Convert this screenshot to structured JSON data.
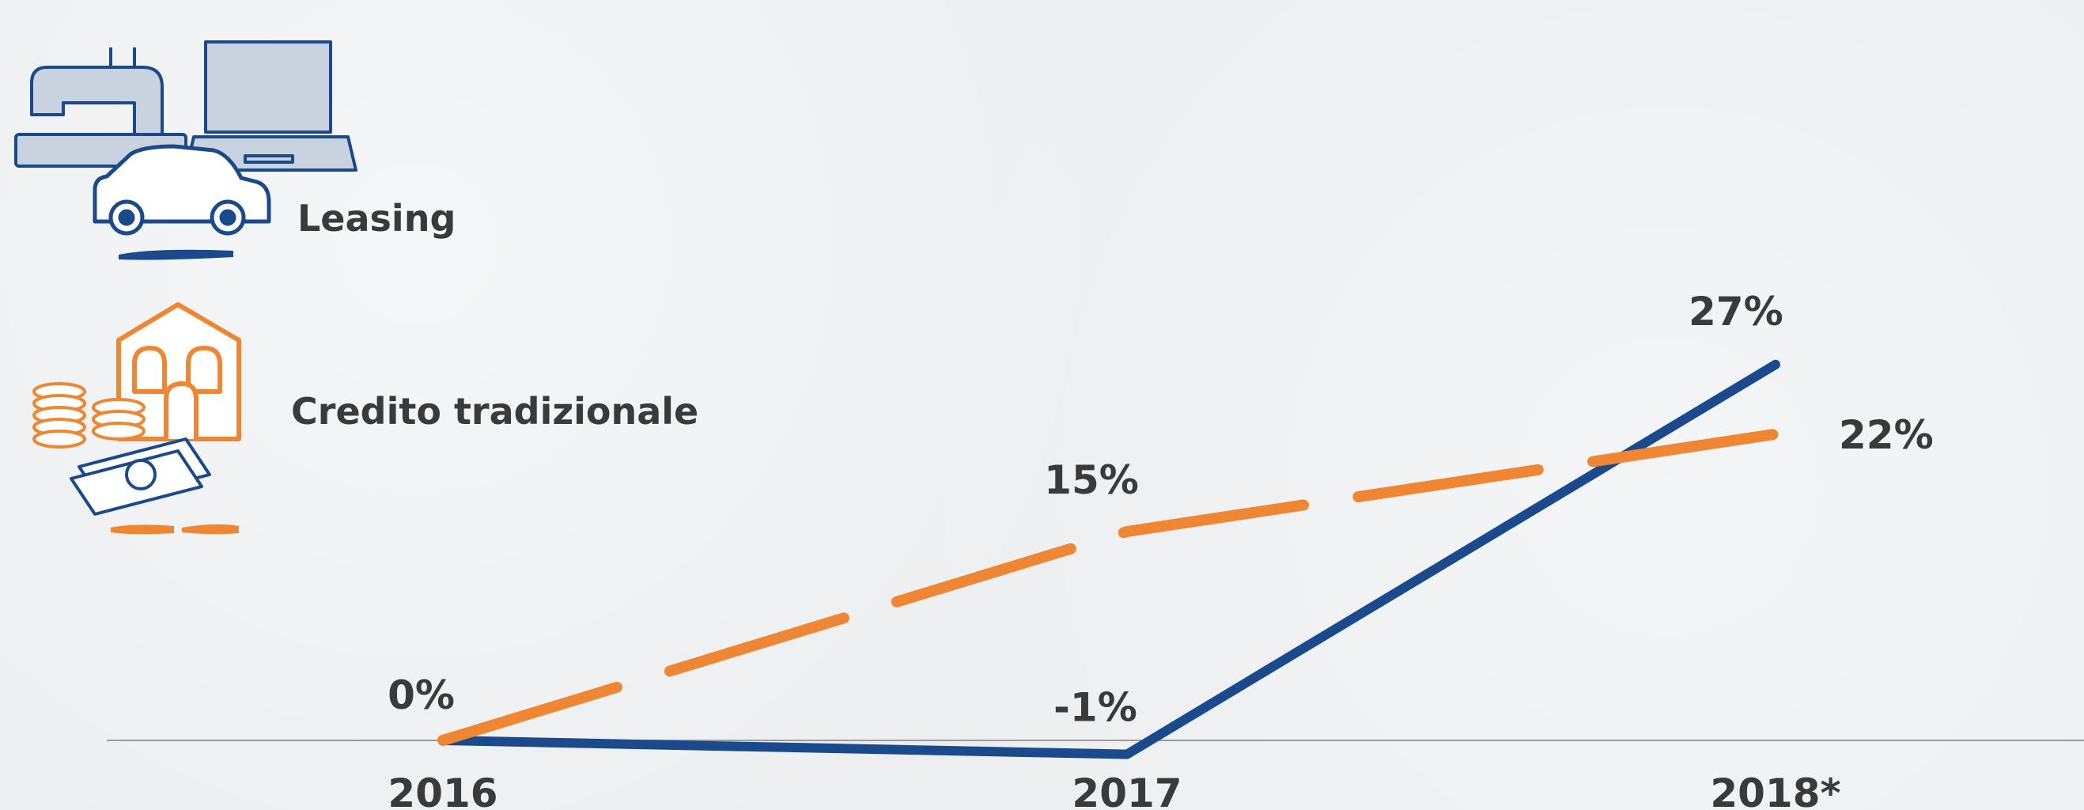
{
  "legend": {
    "items": [
      {
        "label": "Leasing",
        "icon": "leasing-icon",
        "color": "#1b4a8c"
      },
      {
        "label": "Credito tradizionale",
        "icon": "traditional-credit-icon",
        "color": "#ef8633"
      }
    ]
  },
  "chart_data": {
    "type": "line",
    "title": "",
    "xlabel": "",
    "ylabel": "",
    "categories": [
      "2016",
      "2017",
      "2018*"
    ],
    "ylim": [
      -5,
      30
    ],
    "grid": false,
    "legend_position": "top-left",
    "series": [
      {
        "name": "Leasing",
        "color": "#1b4a8c",
        "style": "solid",
        "values": [
          0,
          -1,
          27
        ],
        "labels": [
          "",
          "-1%",
          "27%"
        ]
      },
      {
        "name": "Credito tradizionale",
        "color": "#ef8633",
        "style": "dashed",
        "values": [
          0,
          15,
          22
        ],
        "labels": [
          "0%",
          "15%",
          "22%"
        ]
      }
    ]
  }
}
